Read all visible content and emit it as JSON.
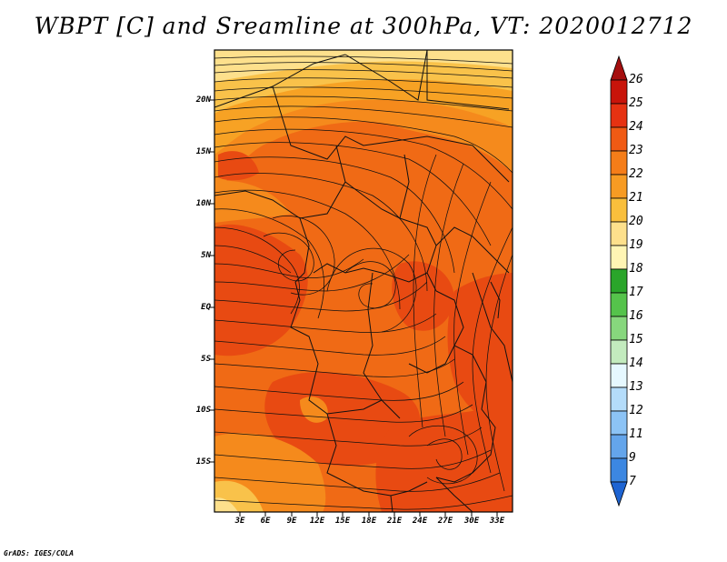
{
  "title": "WBPT [C] and Sreamline at 300hPa, VT: 2020012712",
  "y_axis_labels": [
    "20N",
    "15N",
    "10N",
    "5N",
    "EQ",
    "5S",
    "10S",
    "15S"
  ],
  "x_axis_labels": [
    "3E",
    "6E",
    "9E",
    "12E",
    "15E",
    "18E",
    "21E",
    "24E",
    "27E",
    "30E",
    "33E"
  ],
  "colorbar": {
    "labels": [
      "26",
      "25",
      "24",
      "23",
      "22",
      "21",
      "20",
      "19",
      "18",
      "17",
      "16",
      "15",
      "14",
      "13",
      "12",
      "11",
      "9",
      "7"
    ],
    "colors": [
      "#a50f0f",
      "#c8140a",
      "#e63212",
      "#f05a14",
      "#f57d19",
      "#f79b23",
      "#f9bf3c",
      "#fde08c",
      "#fff5b4",
      "#2aa52a",
      "#55c34b",
      "#87d77d",
      "#c3ebbe",
      "#e6f8ff",
      "#b4dcfa",
      "#8cc3f5",
      "#64a5eb",
      "#3c87e1",
      "#1e64d2"
    ]
  },
  "footer": "GrADS: IGES/COLA"
}
